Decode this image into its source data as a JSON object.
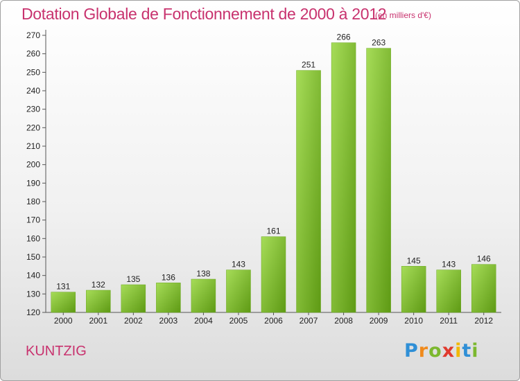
{
  "title": "Dotation Globale de Fonctionnement de 2000 à 2012",
  "unit_note": "(en milliers d'€)",
  "commune": "KUNTZIG",
  "logo": {
    "letters": [
      "P",
      "r",
      "o",
      "x",
      "i",
      "t",
      "i"
    ],
    "colors": [
      "#2f8fd6",
      "#f08a1c",
      "#7cb82f",
      "#e03a2e",
      "#f2b800",
      "#2f8fd6",
      "#7cb82f"
    ]
  },
  "colors": {
    "title": "#c8326e",
    "bar_light": "#9ad24c",
    "bar_dark": "#5e9a14"
  },
  "chart_data": {
    "type": "bar",
    "categories": [
      "2000",
      "2001",
      "2002",
      "2003",
      "2004",
      "2005",
      "2006",
      "2007",
      "2008",
      "2009",
      "2010",
      "2011",
      "2012"
    ],
    "values": [
      131,
      132,
      135,
      136,
      138,
      143,
      161,
      251,
      266,
      263,
      145,
      143,
      146
    ],
    "ylim": [
      120,
      270
    ],
    "yticks": [
      120,
      130,
      140,
      150,
      160,
      170,
      180,
      190,
      200,
      210,
      220,
      230,
      240,
      250,
      260,
      270
    ],
    "grid": false,
    "legend": "none"
  }
}
